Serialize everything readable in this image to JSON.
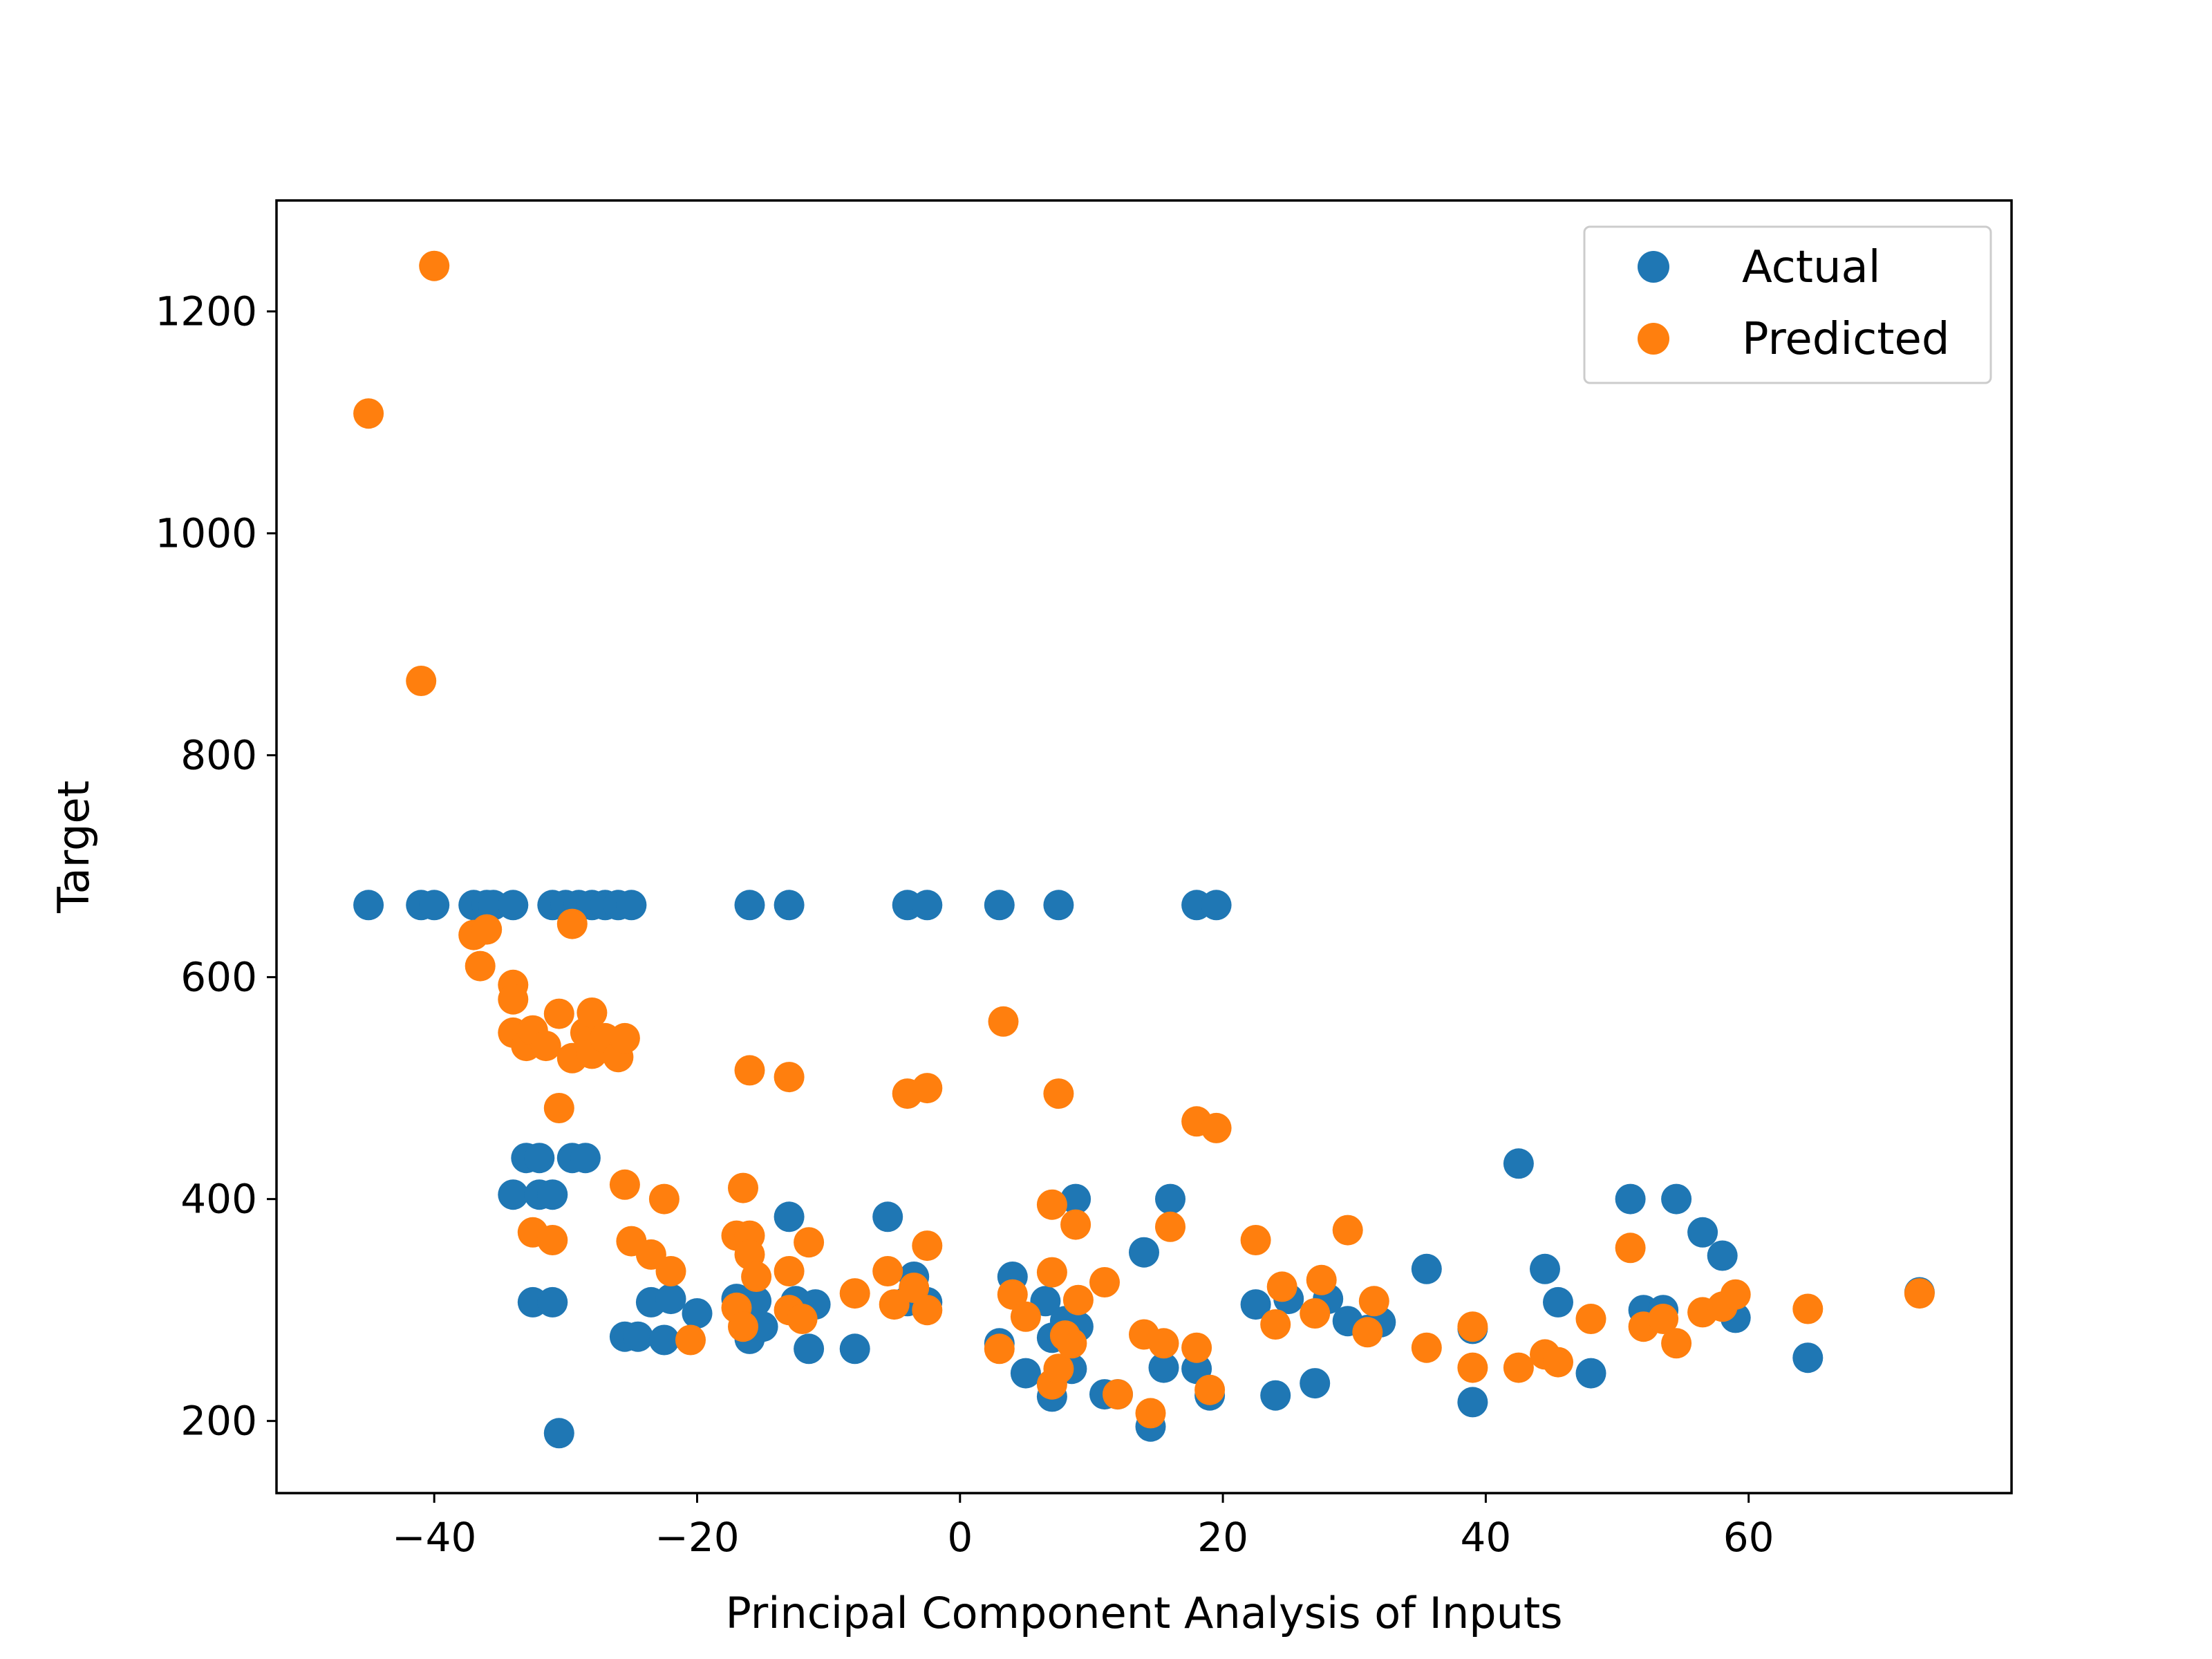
{
  "chart_data": {
    "type": "scatter",
    "title": "",
    "xlabel": "Principal Component Analysis of Inputs",
    "ylabel": "Target",
    "xlim": [
      -52,
      80
    ],
    "ylim": [
      135,
      1300
    ],
    "xticks": [
      -40,
      -20,
      0,
      20,
      40,
      60
    ],
    "yticks": [
      200,
      400,
      600,
      800,
      1000,
      1200
    ],
    "x_tick_labels": [
      "−40",
      "−20",
      "0",
      "20",
      "40",
      "60"
    ],
    "y_tick_labels": [
      "200",
      "400",
      "600",
      "800",
      "1000",
      "1200"
    ],
    "grid": false,
    "legend_position": "top-right",
    "series": [
      {
        "name": "Actual",
        "color": "#1f77b4",
        "points": [
          [
            -45,
            665
          ],
          [
            -41,
            665
          ],
          [
            -40,
            665
          ],
          [
            -37,
            665
          ],
          [
            -36,
            665
          ],
          [
            -35.5,
            665
          ],
          [
            -34,
            665
          ],
          [
            -31,
            665
          ],
          [
            -30,
            665
          ],
          [
            -29,
            665
          ],
          [
            -28,
            665
          ],
          [
            -27,
            665
          ],
          [
            -26,
            665
          ],
          [
            -25,
            665
          ],
          [
            -16,
            665
          ],
          [
            -13,
            665
          ],
          [
            -4,
            665
          ],
          [
            -2.5,
            665
          ],
          [
            3,
            665
          ],
          [
            7.5,
            665
          ],
          [
            18,
            665
          ],
          [
            19.5,
            665
          ],
          [
            -33,
            437
          ],
          [
            -32,
            437
          ],
          [
            -29.5,
            437
          ],
          [
            -28.5,
            437
          ],
          [
            -34,
            404
          ],
          [
            -32,
            404
          ],
          [
            -31,
            404
          ],
          [
            -32.5,
            307
          ],
          [
            -31,
            307
          ],
          [
            -25.5,
            276
          ],
          [
            -24.5,
            276
          ],
          [
            -23.5,
            307
          ],
          [
            -22,
            310
          ],
          [
            -22.5,
            273
          ],
          [
            -20,
            297
          ],
          [
            -17,
            310
          ],
          [
            -15.5,
            308
          ],
          [
            -16,
            274
          ],
          [
            -15,
            285
          ],
          [
            -13,
            384
          ],
          [
            -12.5,
            308
          ],
          [
            -11.5,
            265
          ],
          [
            -11,
            305
          ],
          [
            -8,
            265
          ],
          [
            -5.5,
            384
          ],
          [
            -4,
            308
          ],
          [
            -3.5,
            330
          ],
          [
            -2.5,
            307
          ],
          [
            -30.5,
            189
          ],
          [
            3,
            270
          ],
          [
            4,
            330
          ],
          [
            5,
            243
          ],
          [
            6.5,
            308
          ],
          [
            7,
            275
          ],
          [
            7,
            222
          ],
          [
            8,
            290
          ],
          [
            8.5,
            247
          ],
          [
            8.8,
            400
          ],
          [
            9,
            285
          ],
          [
            11,
            224
          ],
          [
            12,
            224
          ],
          [
            14,
            352
          ],
          [
            14.5,
            195
          ],
          [
            15.5,
            248
          ],
          [
            16,
            400
          ],
          [
            18,
            247
          ],
          [
            19,
            223
          ],
          [
            22.5,
            305
          ],
          [
            24,
            223
          ],
          [
            25,
            310
          ],
          [
            27,
            234
          ],
          [
            28,
            310
          ],
          [
            29.5,
            290
          ],
          [
            31,
            282
          ],
          [
            32,
            289
          ],
          [
            35.5,
            337
          ],
          [
            39,
            283
          ],
          [
            39,
            217
          ],
          [
            42.5,
            432
          ],
          [
            44.5,
            337
          ],
          [
            45.5,
            307
          ],
          [
            48,
            243
          ],
          [
            51,
            400
          ],
          [
            52,
            300
          ],
          [
            53.5,
            300
          ],
          [
            54.5,
            400
          ],
          [
            56.5,
            370
          ],
          [
            58,
            349
          ],
          [
            59,
            293
          ],
          [
            64.5,
            257
          ],
          [
            73,
            316
          ]
        ]
      },
      {
        "name": "Predicted",
        "color": "#ff7f0e",
        "points": [
          [
            -40,
            1241
          ],
          [
            -45,
            1108
          ],
          [
            -41,
            867
          ],
          [
            -37,
            638
          ],
          [
            -36,
            643
          ],
          [
            -36.5,
            610
          ],
          [
            -34,
            593
          ],
          [
            -34,
            580
          ],
          [
            -34,
            550
          ],
          [
            -33,
            538
          ],
          [
            -32.5,
            552
          ],
          [
            -31.5,
            538
          ],
          [
            -30.5,
            567
          ],
          [
            -30.5,
            482
          ],
          [
            -29.5,
            648
          ],
          [
            -29.5,
            527
          ],
          [
            -28.5,
            550
          ],
          [
            -28,
            568
          ],
          [
            -28,
            531
          ],
          [
            -27,
            545
          ],
          [
            -26,
            528
          ],
          [
            -25.5,
            545
          ],
          [
            -32.5,
            370
          ],
          [
            -31,
            363
          ],
          [
            -25.5,
            413
          ],
          [
            -25,
            362
          ],
          [
            -23.5,
            350
          ],
          [
            -22.5,
            400
          ],
          [
            -22,
            335
          ],
          [
            -20.5,
            273
          ],
          [
            -17,
            302
          ],
          [
            -17,
            367
          ],
          [
            -16.5,
            285
          ],
          [
            -16.5,
            410
          ],
          [
            -16,
            367
          ],
          [
            -16,
            350
          ],
          [
            -15.5,
            330
          ],
          [
            -16,
            516
          ],
          [
            -13,
            510
          ],
          [
            -13,
            335
          ],
          [
            -13,
            300
          ],
          [
            -12,
            292
          ],
          [
            -11.5,
            361
          ],
          [
            -8,
            315
          ],
          [
            -5.5,
            335
          ],
          [
            -5,
            305
          ],
          [
            -4,
            495
          ],
          [
            -3.5,
            320
          ],
          [
            -2.5,
            500
          ],
          [
            -2.5,
            358
          ],
          [
            -2.5,
            300
          ],
          [
            3,
            265
          ],
          [
            3.3,
            560
          ],
          [
            4,
            314
          ],
          [
            5,
            294
          ],
          [
            7,
            395
          ],
          [
            7,
            334
          ],
          [
            7,
            233
          ],
          [
            7.5,
            495
          ],
          [
            7.5,
            247
          ],
          [
            8,
            277
          ],
          [
            8.5,
            270
          ],
          [
            8.8,
            377
          ],
          [
            9,
            309
          ],
          [
            11,
            325
          ],
          [
            12,
            224
          ],
          [
            14,
            278
          ],
          [
            14.5,
            207
          ],
          [
            15.5,
            270
          ],
          [
            16,
            375
          ],
          [
            18,
            470
          ],
          [
            18,
            266
          ],
          [
            19,
            228
          ],
          [
            19.5,
            464
          ],
          [
            22.5,
            363
          ],
          [
            24,
            287
          ],
          [
            24.5,
            321
          ],
          [
            27,
            297
          ],
          [
            27.5,
            327
          ],
          [
            29.5,
            372
          ],
          [
            31,
            280
          ],
          [
            31.5,
            308
          ],
          [
            35.5,
            266
          ],
          [
            39,
            285
          ],
          [
            39,
            248
          ],
          [
            42.5,
            248
          ],
          [
            44.5,
            260
          ],
          [
            45.5,
            253
          ],
          [
            48,
            292
          ],
          [
            51,
            356
          ],
          [
            52,
            285
          ],
          [
            53.5,
            292
          ],
          [
            54.5,
            270
          ],
          [
            56.5,
            298
          ],
          [
            58,
            303
          ],
          [
            59,
            314
          ],
          [
            64.5,
            301
          ],
          [
            73,
            315
          ]
        ]
      }
    ]
  }
}
